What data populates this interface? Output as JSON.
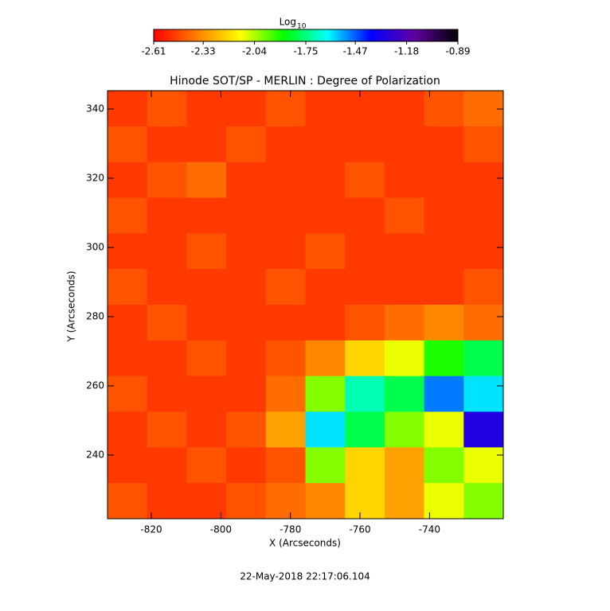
{
  "chart_data": {
    "type": "heatmap",
    "title": "Hinode SOT/SP - MERLIN : Degree of Polarization",
    "xlabel": "X (Arcseconds)",
    "ylabel": "Y (Arcseconds)",
    "colorbar_label": "Log",
    "colorbar_label_sub": "10",
    "footer": "22-May-2018 22:17:06.104",
    "xlim": [
      -832.6,
      -718.8
    ],
    "ylim": [
      221.6,
      345.3
    ],
    "xticks": [
      -820,
      -800,
      -780,
      -760,
      -740
    ],
    "yticks": [
      240,
      260,
      280,
      300,
      320,
      340
    ],
    "zlim": [
      -2.61,
      -0.89
    ],
    "zticks": [
      -2.61,
      -2.33,
      -2.04,
      -1.75,
      -1.47,
      -1.18,
      -0.89
    ],
    "colormap": [
      "#ff0000",
      "#ff8000",
      "#ffff00",
      "#00ff00",
      "#00ffff",
      "#0000ff",
      "#6000a0",
      "#000000"
    ],
    "z": [
      [
        -2.5,
        -2.45,
        -2.5,
        -2.5,
        -2.45,
        -2.5,
        -2.5,
        -2.5,
        -2.45,
        -2.4
      ],
      [
        -2.45,
        -2.5,
        -2.5,
        -2.45,
        -2.5,
        -2.5,
        -2.5,
        -2.5,
        -2.5,
        -2.45
      ],
      [
        -2.5,
        -2.45,
        -2.4,
        -2.5,
        -2.5,
        -2.5,
        -2.45,
        -2.5,
        -2.5,
        -2.5
      ],
      [
        -2.45,
        -2.5,
        -2.5,
        -2.5,
        -2.5,
        -2.5,
        -2.5,
        -2.45,
        -2.5,
        -2.5
      ],
      [
        -2.5,
        -2.5,
        -2.45,
        -2.5,
        -2.5,
        -2.45,
        -2.5,
        -2.5,
        -2.5,
        -2.5
      ],
      [
        -2.45,
        -2.5,
        -2.5,
        -2.5,
        -2.45,
        -2.5,
        -2.5,
        -2.5,
        -2.5,
        -2.45
      ],
      [
        -2.5,
        -2.45,
        -2.5,
        -2.5,
        -2.5,
        -2.5,
        -2.45,
        -2.4,
        -2.35,
        -2.4
      ],
      [
        -2.5,
        -2.5,
        -2.45,
        -2.5,
        -2.45,
        -2.35,
        -2.2,
        -2.1,
        -1.9,
        -1.8
      ],
      [
        -2.45,
        -2.5,
        -2.5,
        -2.5,
        -2.4,
        -2.0,
        -1.7,
        -1.8,
        -1.5,
        -1.6
      ],
      [
        -2.5,
        -2.45,
        -2.5,
        -2.45,
        -2.3,
        -1.6,
        -1.8,
        -2.0,
        -2.1,
        -1.3
      ],
      [
        -2.5,
        -2.5,
        -2.45,
        -2.5,
        -2.45,
        -2.0,
        -2.2,
        -2.3,
        -2.0,
        -2.1
      ],
      [
        -2.45,
        -2.5,
        -2.5,
        -2.45,
        -2.4,
        -2.35,
        -2.2,
        -2.3,
        -2.1,
        -2.0
      ]
    ]
  }
}
